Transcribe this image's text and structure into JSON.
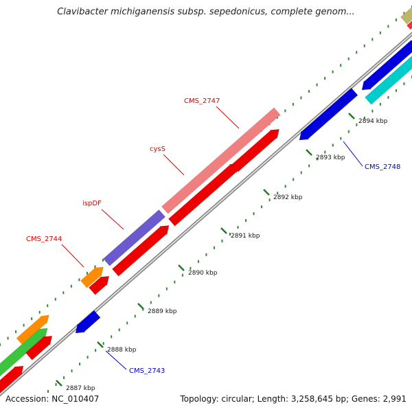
{
  "title": "Clavibacter michiganensis subsp. sepedonicus, complete genom...",
  "footer": {
    "accession": "Accession: NC_010407",
    "summary": "Topology: circular; Length: 3,258,645 bp; Genes: 2,991"
  },
  "colors": {
    "backbone": "#8c8c8c",
    "minor_tick": "#2e8b2e",
    "major_tick": "#1f7a1f",
    "forward_label": "#dd0000",
    "reverse_label": "#0000cc"
  },
  "ticks": [
    {
      "label": "2887 kbp"
    },
    {
      "label": "2888 kbp"
    },
    {
      "label": "2889 kbp"
    },
    {
      "label": "2890 kbp"
    },
    {
      "label": "2891 kbp"
    },
    {
      "label": "2892 kbp"
    },
    {
      "label": "2893 kbp"
    },
    {
      "label": "2894 kbp"
    }
  ],
  "gene_labels": [
    {
      "text": "CMS_2744",
      "strand": "forward"
    },
    {
      "text": "ispDF",
      "strand": "forward"
    },
    {
      "text": "cysS",
      "strand": "forward"
    },
    {
      "text": "CMS_2747",
      "strand": "forward"
    },
    {
      "text": "CMS_2743",
      "strand": "reverse"
    },
    {
      "text": "CMS_2748",
      "strand": "reverse"
    }
  ],
  "features": [
    {
      "name": "feature-green-outer",
      "color": "#3cc43c"
    },
    {
      "name": "feature-orange-outer-left",
      "color": "#ff8c00"
    },
    {
      "name": "feature-red-inner-left-a",
      "color": "#ee0000"
    },
    {
      "name": "feature-red-inner-left-b",
      "color": "#ee0000"
    },
    {
      "name": "feature-blue-reverse-left",
      "color": "#0000dd"
    },
    {
      "name": "feature-orange-cms2744",
      "color": "#ff8c00"
    },
    {
      "name": "feature-red-short",
      "color": "#ee0000"
    },
    {
      "name": "feature-purple-ispdf",
      "color": "#6a5acd"
    },
    {
      "name": "feature-red-long-a",
      "color": "#ee0000"
    },
    {
      "name": "feature-pink-cyss",
      "color": "#f08080"
    },
    {
      "name": "feature-red-long-b",
      "color": "#ee0000"
    },
    {
      "name": "feature-red-long-c",
      "color": "#ee0000"
    },
    {
      "name": "feature-blue-cms2748",
      "color": "#0000dd"
    },
    {
      "name": "feature-blue-right",
      "color": "#0000dd"
    },
    {
      "name": "feature-cyan-right",
      "color": "#00cccc"
    },
    {
      "name": "feature-olive-right",
      "color": "#bdb76b"
    },
    {
      "name": "feature-pink-right",
      "color": "#ff3030"
    }
  ]
}
